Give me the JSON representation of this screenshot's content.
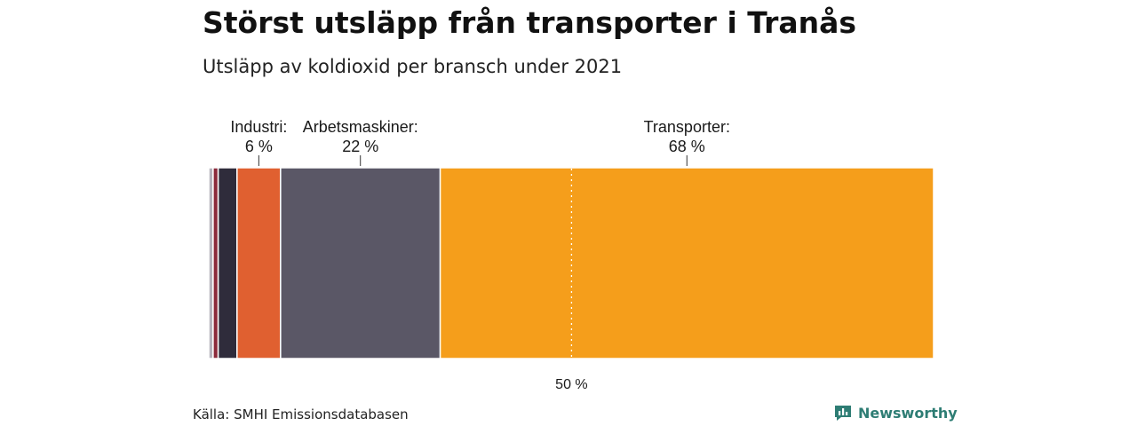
{
  "title": "Störst utsläpp från transporter i Tranås",
  "subtitle": "Utsläpp av koldioxid per bransch under 2021",
  "source": "Källa: SMHI Emissionsdatabasen",
  "brand": "Newsworthy",
  "colors": {
    "brand": "#2e7d74",
    "reference_line": "#ffffff"
  },
  "chart_data": {
    "type": "bar",
    "orientation": "horizontal-stacked",
    "unit": "%",
    "xlim": [
      0,
      100
    ],
    "reference_line": {
      "value": 50,
      "label": "50 %"
    },
    "segments": [
      {
        "value": 0.6,
        "color": "#b6b3bd"
      },
      {
        "value": 0.7,
        "color": "#8c2b3c"
      },
      {
        "value": 2.6,
        "color": "#2f2c3b"
      },
      {
        "value": 6,
        "color": "#e06030",
        "label": "Industri:",
        "value_label": "6 %"
      },
      {
        "value": 22,
        "color": "#5a5766",
        "label": "Arbetsmaskiner:",
        "value_label": "22 %"
      },
      {
        "value": 68,
        "color": "#f59e1b",
        "label": "Transporter:",
        "value_label": "68 %"
      }
    ]
  }
}
